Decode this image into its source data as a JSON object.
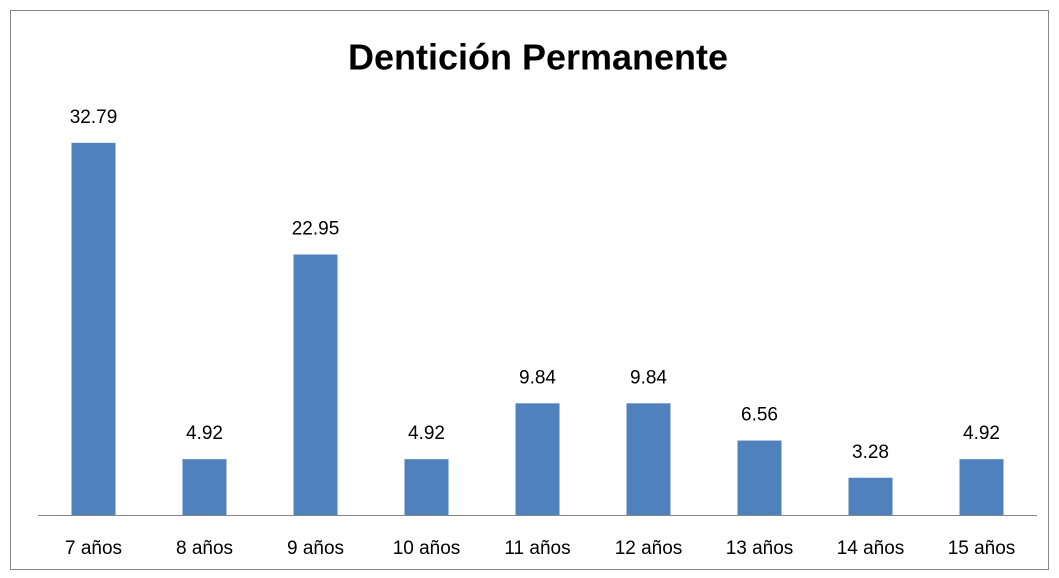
{
  "chart_data": {
    "type": "bar",
    "title": "Dentición Permanente",
    "categories": [
      "7 años",
      "8 años",
      "9 años",
      "10 años",
      "11 años",
      "12 años",
      "13 años",
      "14 años",
      "15 años"
    ],
    "values": [
      32.79,
      4.92,
      22.95,
      4.92,
      9.84,
      9.84,
      6.56,
      3.28,
      4.92
    ],
    "color": "#4f81bd"
  }
}
